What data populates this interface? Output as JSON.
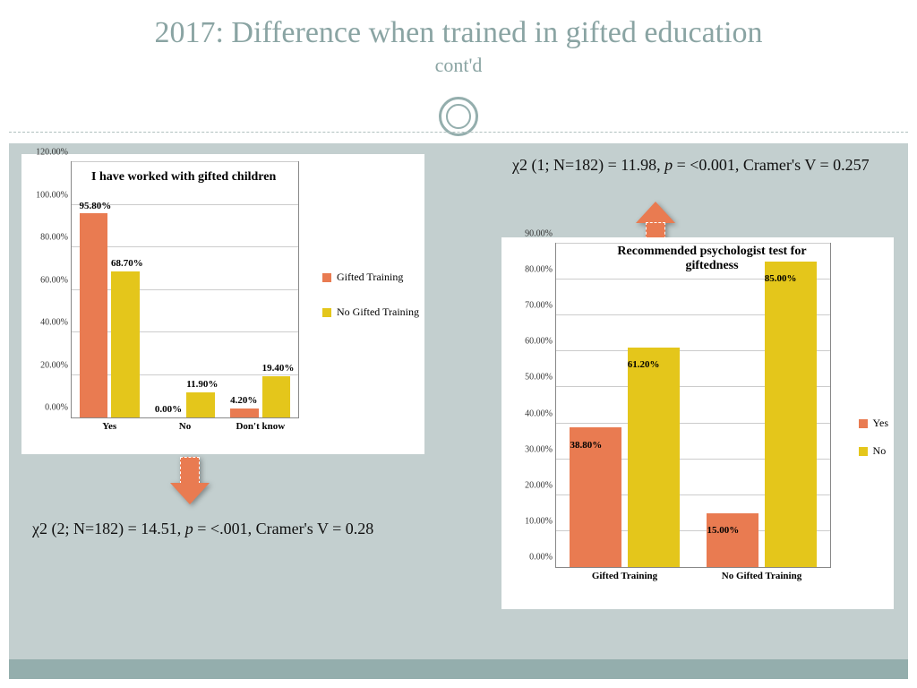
{
  "title": "2017: Difference when trained in gifted education",
  "subtitle": "cont'd",
  "colors": {
    "accent": "#8aa4a3",
    "body_bg": "#c3cfcf",
    "footer": "#94aead",
    "bar_orange": "#e97b51",
    "bar_yellow": "#e4c61b",
    "arrow": "#e97b51",
    "grid": "#cccccc"
  },
  "chart1": {
    "title": "I have worked with gifted children",
    "ymax": 120,
    "ytick_step": 20,
    "categories": [
      "Yes",
      "No",
      "Don't know"
    ],
    "series": [
      {
        "name": "Gifted Training",
        "color": "#e97b51",
        "values": [
          95.8,
          0.0,
          4.2
        ],
        "labels": [
          "95.80%",
          "0.00%",
          "4.20%"
        ]
      },
      {
        "name": "No Gifted Training",
        "color": "#e4c61b",
        "values": [
          68.7,
          11.9,
          19.4
        ],
        "labels": [
          "68.70%",
          "11.90%",
          "19.40%"
        ]
      }
    ]
  },
  "chart2": {
    "title": "Recommended psychologist test for giftedness",
    "ymax": 90,
    "ytick_step": 10,
    "categories": [
      "Gifted Training",
      "No Gifted Training"
    ],
    "series": [
      {
        "name": "Yes",
        "color": "#e97b51",
        "values": [
          38.8,
          15.0
        ],
        "labels": [
          "38.80%",
          "15.00%"
        ]
      },
      {
        "name": "No",
        "color": "#e4c61b",
        "values": [
          61.2,
          85.0
        ],
        "labels": [
          "61.20%",
          "85.00%"
        ]
      }
    ]
  },
  "stat1_a": "χ2 (2; N=182) =  14.51, ",
  "stat1_p": "p",
  "stat1_b": " = <.001, Cramer's V = 0.28",
  "stat2_a": "χ2 (1; N=182) = 11.98, ",
  "stat2_p": "p",
  "stat2_b": " = <0.001, Cramer's V = 0.257"
}
